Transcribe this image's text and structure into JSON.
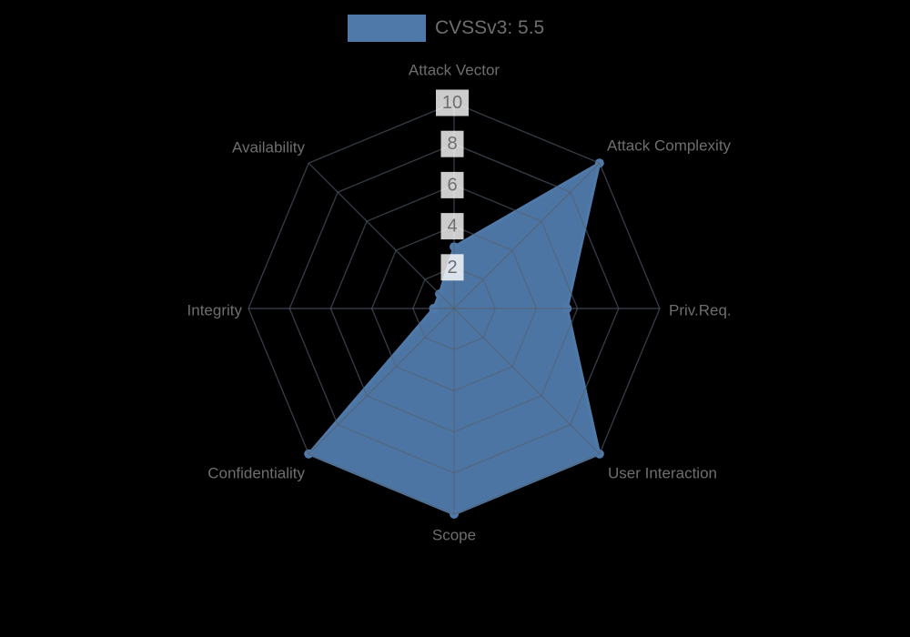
{
  "page": {
    "background_color": "#000000"
  },
  "legend": {
    "label": "CVSSv3: 5.5",
    "swatch_color": "#4e79a8",
    "text_color": "#6e6e6e",
    "position": "top"
  },
  "chart_data": {
    "type": "radar",
    "title": "",
    "categories": [
      "Attack Vector",
      "Attack Complexity",
      "Priv.Req.",
      "User Interaction",
      "Scope",
      "Confidentiality",
      "Integrity",
      "Availability"
    ],
    "series": [
      {
        "name": "CVSSv3: 5.5",
        "values": [
          3,
          10,
          5.5,
          10,
          10,
          10,
          1,
          1
        ]
      }
    ],
    "rlim": [
      0,
      10
    ],
    "ticks": [
      2,
      4,
      6,
      8,
      10
    ],
    "grid": "polygon-web",
    "legend_position": "top",
    "start_axis": "top",
    "direction": "clockwise",
    "colors": {
      "series_fill": "#4e79a8",
      "series_stroke": "#4e79a8",
      "grid_line": "rgba(85,95,110,0.6)",
      "tick_text": "#6e6e6e",
      "tick_backdrop": "rgba(255,255,255,0.8)",
      "axis_label_text": "#6e6e6e"
    }
  }
}
